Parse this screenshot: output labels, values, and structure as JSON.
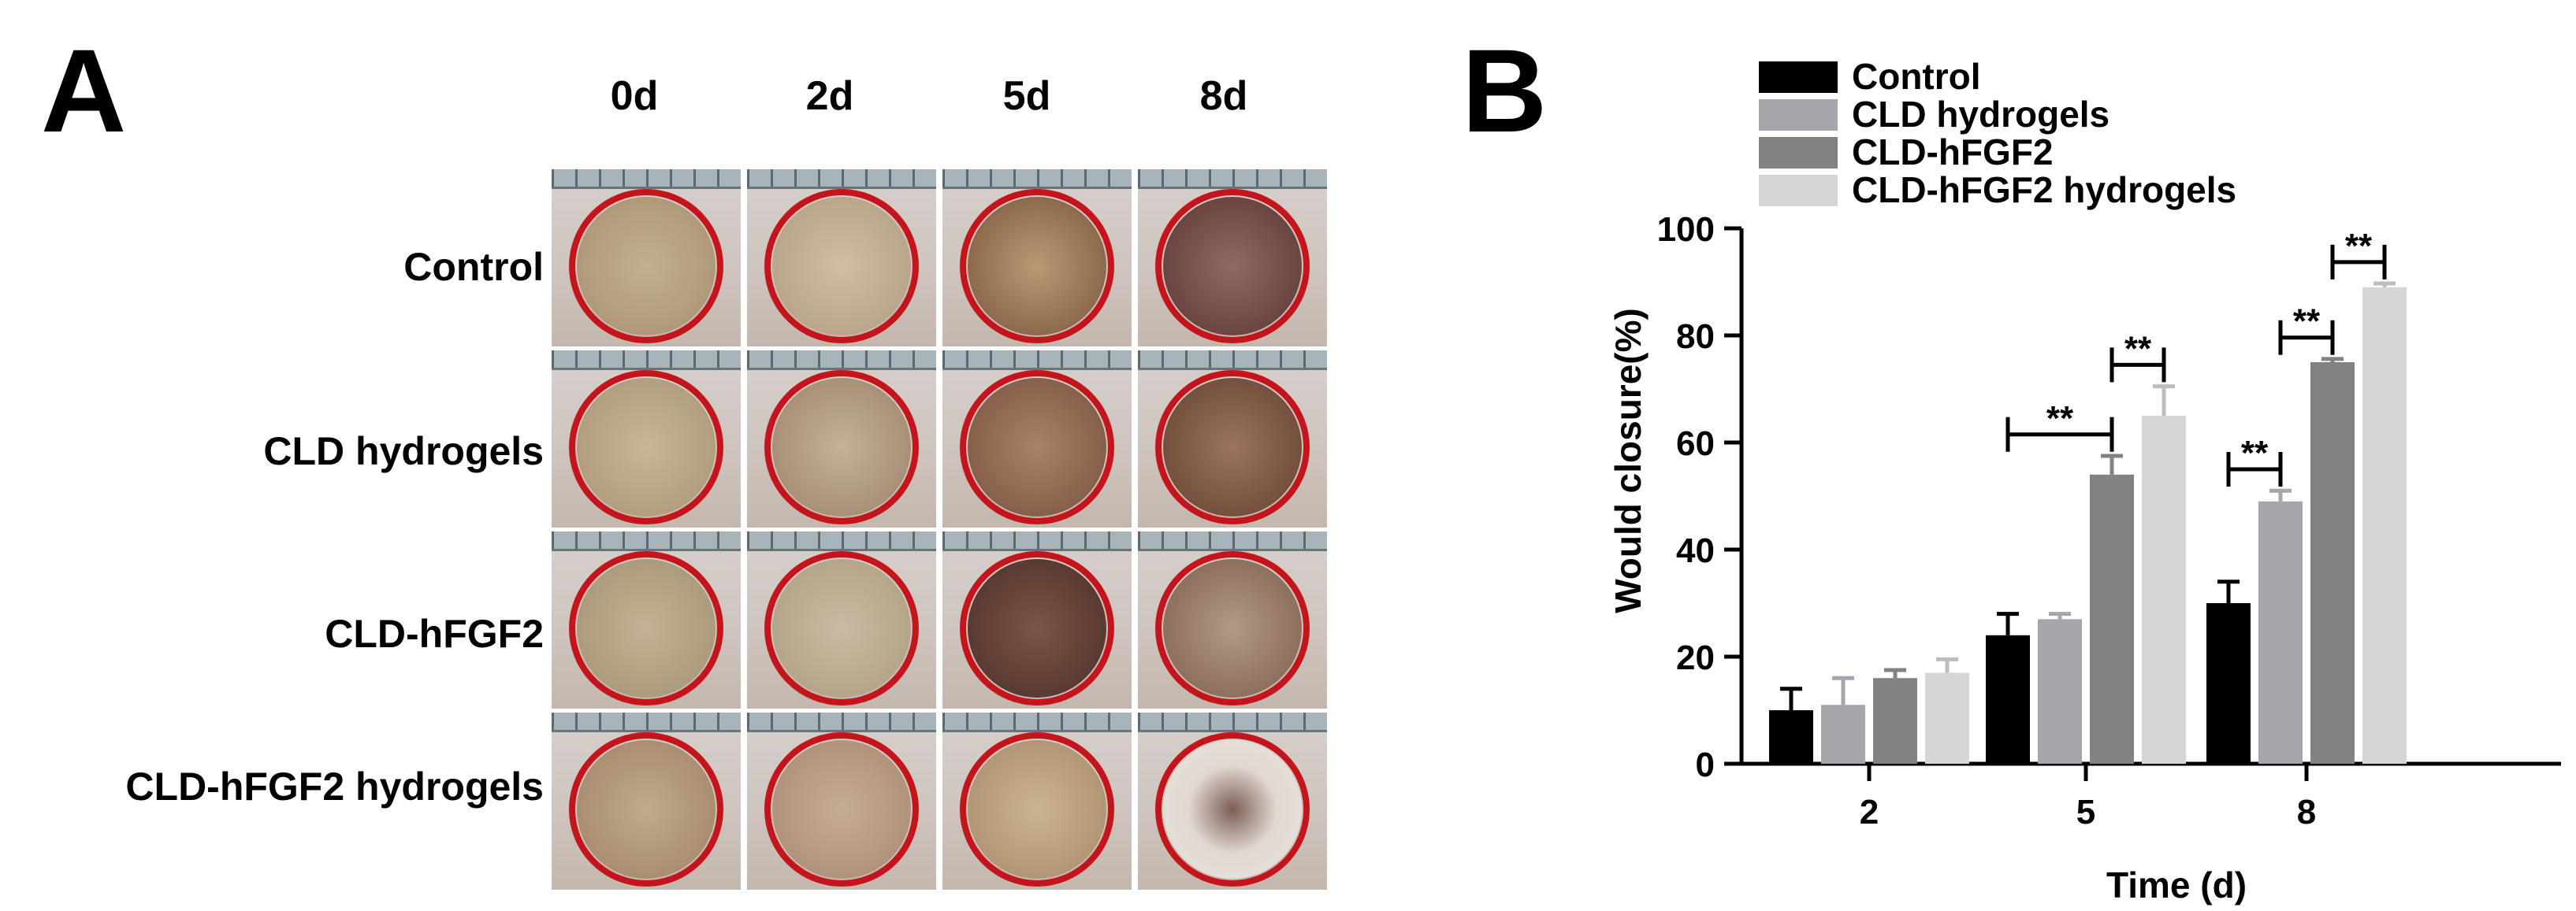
{
  "panel_a": {
    "letter": "A",
    "columns": [
      "0d",
      "2d",
      "5d",
      "8d"
    ],
    "rows": [
      "Control",
      "CLD hydrogels",
      "CLD-hFGF2",
      "CLD-hFGF2 hydrogels"
    ]
  },
  "chart_data": {
    "panel_letter": "B",
    "type": "bar",
    "title": "",
    "xlabel": "Time (d)",
    "ylabel": "Would closure(%)",
    "ylim": [
      0,
      100
    ],
    "yticks": [
      0,
      20,
      40,
      60,
      80,
      100
    ],
    "categories": [
      "2",
      "5",
      "8"
    ],
    "legend_position": "top-left",
    "series": [
      {
        "name": "Control",
        "color": "#000000",
        "values": [
          10,
          24,
          30
        ],
        "errors": [
          4,
          4,
          4
        ]
      },
      {
        "name": "CLD hydrogels",
        "color": "#a5a5ab",
        "values": [
          11,
          27,
          49
        ],
        "errors": [
          5,
          1,
          2
        ]
      },
      {
        "name": "CLD-hFGF2",
        "color": "#828282",
        "values": [
          16,
          54,
          75
        ],
        "errors": [
          1.5,
          3.5,
          0.6
        ]
      },
      {
        "name": "CLD-hFGF2 hydrogels",
        "color": "#d6d6d6",
        "values": [
          17,
          65,
          89
        ],
        "errors": [
          2.5,
          5.5,
          0.7
        ]
      }
    ],
    "significance": [
      {
        "category": "5",
        "from_series": 0,
        "to_series": 2,
        "label": "**"
      },
      {
        "category": "5",
        "from_series": 2,
        "to_series": 3,
        "label": "**"
      },
      {
        "category": "8",
        "from_series": 0,
        "to_series": 1,
        "label": "**"
      },
      {
        "category": "8",
        "from_series": 1,
        "to_series": 2,
        "label": "**"
      },
      {
        "category": "8",
        "from_series": 2,
        "to_series": 3,
        "label": "**"
      }
    ]
  }
}
